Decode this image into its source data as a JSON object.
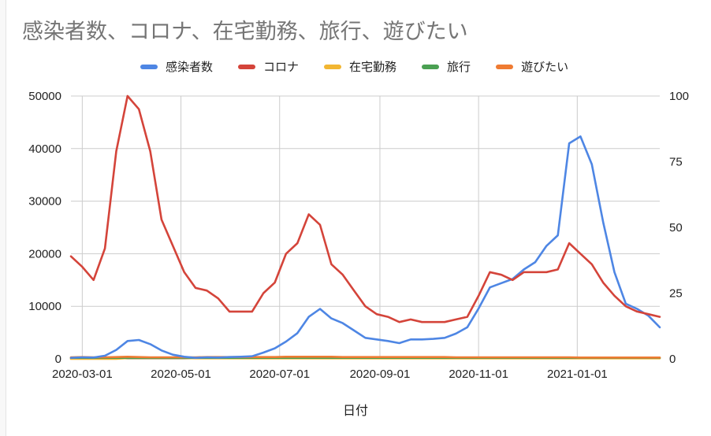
{
  "chart_data": {
    "type": "line",
    "title": "感染者数、コロナ、在宅勤務、旅行、遊びたい",
    "xlabel": "日付",
    "x_ticks": [
      "2020-03-01",
      "2020-05-01",
      "2020-07-01",
      "2020-09-01",
      "2020-11-01",
      "2021-01-01"
    ],
    "y_left": {
      "range": [
        0,
        50000
      ],
      "ticks": [
        "0",
        "10000",
        "20000",
        "30000",
        "40000",
        "50000"
      ]
    },
    "y_right": {
      "range": [
        0,
        100
      ],
      "ticks": [
        "0",
        "25",
        "50",
        "75",
        "100"
      ]
    },
    "legend_position": "top",
    "grid": true,
    "x": [
      "2020-02-23",
      "2020-03-01",
      "2020-03-08",
      "2020-03-15",
      "2020-03-22",
      "2020-03-29",
      "2020-04-05",
      "2020-04-12",
      "2020-04-19",
      "2020-04-26",
      "2020-05-03",
      "2020-05-10",
      "2020-05-17",
      "2020-05-24",
      "2020-05-31",
      "2020-06-07",
      "2020-06-14",
      "2020-06-21",
      "2020-06-28",
      "2020-07-05",
      "2020-07-12",
      "2020-07-19",
      "2020-07-26",
      "2020-08-02",
      "2020-08-09",
      "2020-08-16",
      "2020-08-23",
      "2020-08-30",
      "2020-09-06",
      "2020-09-13",
      "2020-09-20",
      "2020-09-27",
      "2020-10-04",
      "2020-10-11",
      "2020-10-18",
      "2020-10-25",
      "2020-11-01",
      "2020-11-08",
      "2020-11-15",
      "2020-11-22",
      "2020-11-29",
      "2020-12-06",
      "2020-12-13",
      "2020-12-20",
      "2020-12-27",
      "2021-01-03",
      "2021-01-10",
      "2021-01-17",
      "2021-01-24",
      "2021-01-31",
      "2021-02-07",
      "2021-02-14",
      "2021-02-21"
    ],
    "series": [
      {
        "name": "感染者数",
        "axis": "left",
        "color": "#4e86e4",
        "values": [
          200,
          300,
          250,
          600,
          1700,
          3400,
          3600,
          2800,
          1600,
          800,
          400,
          200,
          300,
          250,
          350,
          400,
          500,
          1200,
          2000,
          3300,
          4900,
          8000,
          9500,
          7700,
          6800,
          5400,
          4000,
          3700,
          3400,
          3000,
          3700,
          3700,
          3800,
          4000,
          4800,
          6000,
          9600,
          13600,
          14400,
          15200,
          17000,
          18400,
          21500,
          23500,
          41000,
          42300,
          37000,
          26000,
          16500,
          10500,
          9500,
          8200,
          6000
        ]
      },
      {
        "name": "コロナ",
        "axis": "right",
        "color": "#d4443a",
        "values": [
          39,
          35,
          30,
          42,
          79,
          100,
          95,
          79,
          53,
          43,
          33,
          27,
          26,
          23,
          18,
          18,
          18,
          25,
          29,
          40,
          44,
          55,
          51,
          36,
          32,
          26,
          20,
          17,
          16,
          14,
          15,
          14,
          14,
          14,
          15,
          16,
          24,
          33,
          32,
          30,
          33,
          33,
          33,
          34,
          44,
          40,
          36,
          29,
          24,
          20,
          18,
          17,
          16
        ]
      },
      {
        "name": "在宅勤務",
        "axis": "right",
        "color": "#f2b632",
        "values": [
          0,
          0,
          0,
          0,
          0,
          0.3,
          0.3,
          0.3,
          0.3,
          0.3,
          0.3,
          0.2,
          0.2,
          0.2,
          0.2,
          0.2,
          0.2,
          0.2,
          0.2,
          0.2,
          0.2,
          0.2,
          0.2,
          0.2,
          0.2,
          0.2,
          0.2,
          0.2,
          0.2,
          0.2,
          0.2,
          0.2,
          0.2,
          0.2,
          0.2,
          0.2,
          0.2,
          0.2,
          0.2,
          0.2,
          0.2,
          0.2,
          0.2,
          0.2,
          0.2,
          0.2,
          0.2,
          0.2,
          0.2,
          0.2,
          0.2,
          0.2,
          0.2
        ]
      },
      {
        "name": "旅行",
        "axis": "right",
        "color": "#4aa052",
        "values": [
          0.4,
          0.4,
          0.4,
          0.4,
          0.4,
          0.4,
          0.4,
          0.4,
          0.4,
          0.4,
          0.4,
          0.4,
          0.4,
          0.4,
          0.4,
          0.4,
          0.4,
          0.4,
          0.4,
          0.4,
          0.4,
          0.4,
          0.4,
          0.4,
          0.4,
          0.4,
          0.4,
          0.4,
          0.4,
          0.4,
          0.4,
          0.4,
          0.4,
          0.4,
          0.4,
          0.4,
          0.4,
          0.4,
          0.4,
          0.4,
          0.4,
          0.4,
          0.4,
          0.4,
          0.4,
          0.4,
          0.4,
          0.4,
          0.4,
          0.4,
          0.4,
          0.4,
          0.4
        ]
      },
      {
        "name": "遊びたい",
        "axis": "right",
        "color": "#ef7b32",
        "values": [
          0.6,
          0.7,
          0.6,
          0.6,
          0.7,
          0.8,
          0.7,
          0.6,
          0.6,
          0.6,
          0.6,
          0.6,
          0.7,
          0.7,
          0.7,
          0.7,
          0.7,
          0.7,
          0.7,
          0.8,
          0.8,
          0.8,
          0.8,
          0.8,
          0.7,
          0.7,
          0.7,
          0.7,
          0.7,
          0.7,
          0.7,
          0.7,
          0.7,
          0.7,
          0.6,
          0.6,
          0.6,
          0.6,
          0.6,
          0.6,
          0.6,
          0.6,
          0.6,
          0.6,
          0.6,
          0.5,
          0.5,
          0.5,
          0.5,
          0.5,
          0.5,
          0.5,
          0.5
        ]
      }
    ]
  }
}
